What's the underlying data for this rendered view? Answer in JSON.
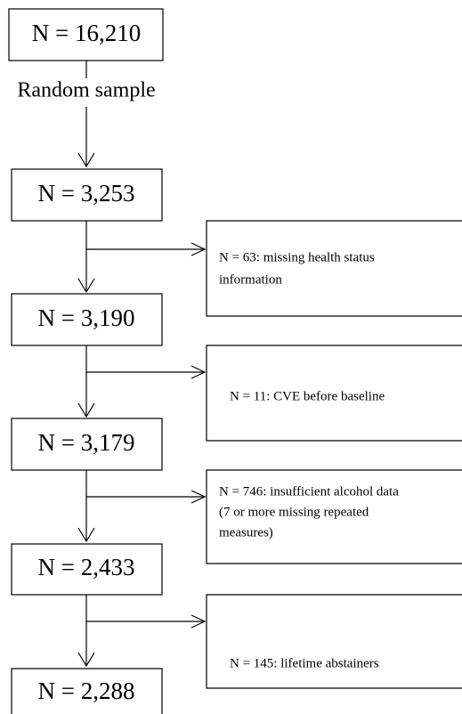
{
  "nodes": [
    {
      "label": "N = 16,210"
    },
    {
      "label": "N = 3,253"
    },
    {
      "label": "N = 3,190"
    },
    {
      "label": "N = 3,179"
    },
    {
      "label": "N = 2,433"
    },
    {
      "label": "N = 2,288"
    }
  ],
  "step_label": "Random sample",
  "exclusions": [
    {
      "lines": [
        "N = 63: missing health status",
        "information"
      ]
    },
    {
      "lines": [
        "N = 11: CVE before baseline"
      ]
    },
    {
      "lines": [
        "N = 746: insufficient alcohol data",
        "(7 or more  missing repeated",
        "measures)"
      ]
    },
    {
      "lines": [
        "N = 145: lifetime abstainers"
      ]
    }
  ]
}
